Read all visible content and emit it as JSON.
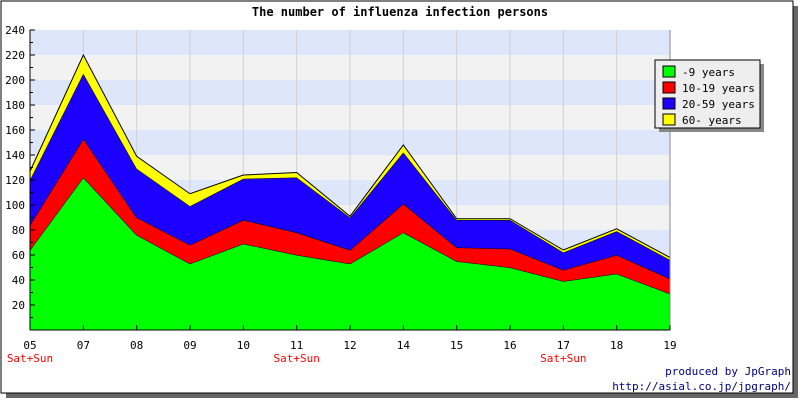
{
  "chart_data": {
    "type": "area",
    "stacked": true,
    "title": "The number of influenza infection persons",
    "xlabel": "",
    "ylabel": "",
    "categories": [
      "05",
      "07",
      "08",
      "09",
      "10",
      "11",
      "12",
      "14",
      "15",
      "16",
      "17",
      "18",
      "19"
    ],
    "day_notes": [
      "Sat+Sun",
      "",
      "",
      "",
      "",
      "Sat+Sun",
      "",
      "",
      "",
      "",
      "Sat+Sun",
      "",
      ""
    ],
    "ylim": [
      0,
      240
    ],
    "yticks": [
      20,
      40,
      60,
      80,
      100,
      120,
      140,
      160,
      180,
      200,
      220,
      240
    ],
    "grid": true,
    "background_bands": [
      "#dde6fb",
      "#f2f2f2"
    ],
    "legend_position": "right",
    "series": [
      {
        "name": "-9 years",
        "color": "#00ff00",
        "values": [
          64,
          122,
          76,
          53,
          69,
          60,
          53,
          78,
          55,
          50,
          39,
          45,
          29
        ]
      },
      {
        "name": "10-19 years",
        "color": "#ff0000",
        "values": [
          20,
          31,
          14,
          15,
          19,
          18,
          11,
          23,
          11,
          15,
          9,
          15,
          12
        ]
      },
      {
        "name": "20-59 years",
        "color": "#1c00ff",
        "values": [
          36,
          52,
          39,
          31,
          33,
          44,
          26,
          41,
          22,
          23,
          14,
          19,
          15
        ]
      },
      {
        "name": "60- years",
        "color": "#ffff00",
        "values": [
          7,
          15,
          10,
          10,
          3,
          4,
          1,
          6,
          1,
          1,
          2,
          2,
          2
        ]
      }
    ]
  },
  "credits": {
    "line1": "produced by JpGraph",
    "line2": "http://asial.co.jp/jpgraph/"
  }
}
